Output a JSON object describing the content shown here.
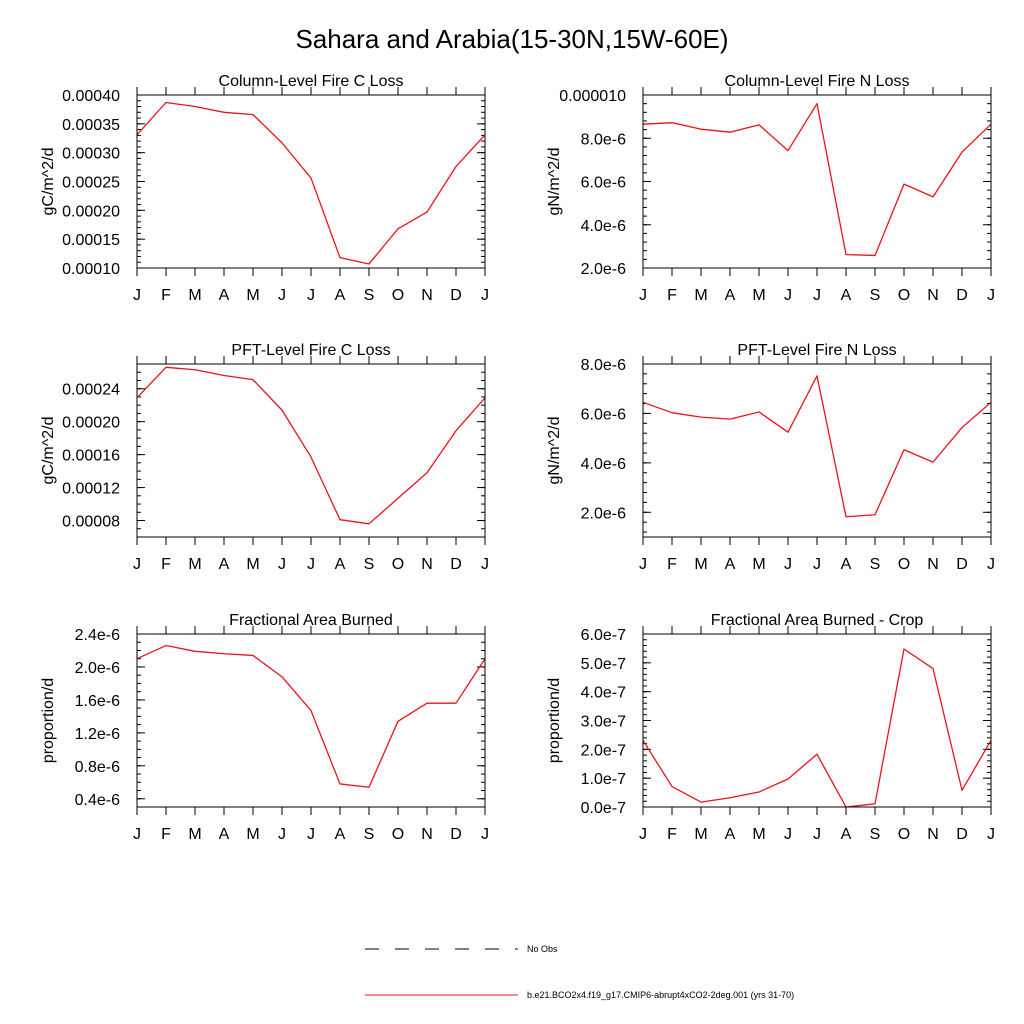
{
  "figure": {
    "title": "Sahara and Arabia(15-30N,15W-60E)"
  },
  "legend": {
    "placement": "bottom-center",
    "entries": [
      {
        "label": "No Obs",
        "color": "#000000",
        "style": "dashed"
      },
      {
        "label": "b.e21.BCO2x4.f19_g17.CMIP6-abrupt4xCO2-2deg.001 (yrs 31-70)",
        "color": "#e8141c",
        "style": "solid"
      }
    ]
  },
  "chart_data": [
    {
      "type": "line",
      "title": "Column-Level Fire C Loss",
      "xlabel": "",
      "ylabel": "gC/m^2/d",
      "x": [
        "J",
        "F",
        "M",
        "A",
        "M",
        "J",
        "J",
        "A",
        "S",
        "O",
        "N",
        "D",
        "J"
      ],
      "ylim": [
        0.0001,
        0.0004
      ],
      "yticks": [
        0.0001,
        0.00015,
        0.0002,
        0.00025,
        0.0003,
        0.00035,
        0.0004
      ],
      "yticklabels": [
        "0.00010",
        "0.00015",
        "0.00020",
        "0.00025",
        "0.00030",
        "0.00035",
        "0.00040"
      ],
      "yminor": 1e-05,
      "series": [
        {
          "name": "b.e21.BCO2x4.f19_g17.CMIP6-abrupt4xCO2-2deg.001 (yrs 31-70)",
          "color": "#e8141c",
          "values": [
            0.000331,
            0.000387,
            0.00038,
            0.00037,
            0.000366,
            0.000317,
            0.000256,
            0.000118,
            0.000107,
            0.000168,
            0.000197,
            0.000276,
            0.000331
          ]
        }
      ]
    },
    {
      "type": "line",
      "title": "Column-Level Fire N Loss",
      "xlabel": "",
      "ylabel": "gN/m^2/d",
      "x": [
        "J",
        "F",
        "M",
        "A",
        "M",
        "J",
        "J",
        "A",
        "S",
        "O",
        "N",
        "D",
        "J"
      ],
      "ylim": [
        2e-06,
        1e-05
      ],
      "yticks": [
        2e-06,
        4e-06,
        6e-06,
        8e-06,
        1e-05
      ],
      "yticklabels": [
        "2.0e-6",
        "4.0e-6",
        "6.0e-6",
        "8.0e-6",
        "0.000010"
      ],
      "yminor": 4e-07,
      "series": [
        {
          "name": "b.e21.BCO2x4.f19_g17.CMIP6-abrupt4xCO2-2deg.001 (yrs 31-70)",
          "color": "#e8141c",
          "values": [
            8.65e-06,
            8.72e-06,
            8.42e-06,
            8.28e-06,
            8.62e-06,
            7.43e-06,
            9.6e-06,
            2.62e-06,
            2.58e-06,
            5.88e-06,
            5.29e-06,
            7.36e-06,
            8.65e-06
          ]
        }
      ]
    },
    {
      "type": "line",
      "title": "PFT-Level Fire C Loss",
      "xlabel": "",
      "ylabel": "gC/m^2/d",
      "x": [
        "J",
        "F",
        "M",
        "A",
        "M",
        "J",
        "J",
        "A",
        "S",
        "O",
        "N",
        "D",
        "J"
      ],
      "ylim": [
        6e-05,
        0.00027
      ],
      "yticks": [
        8e-05,
        0.00012,
        0.00016,
        0.0002,
        0.00024
      ],
      "yticklabels": [
        "0.00008",
        "0.00012",
        "0.00016",
        "0.00020",
        "0.00024"
      ],
      "yminor": 1e-05,
      "series": [
        {
          "name": "b.e21.BCO2x4.f19_g17.CMIP6-abrupt4xCO2-2deg.001 (yrs 31-70)",
          "color": "#e8141c",
          "values": [
            0.000229,
            0.000266,
            0.000263,
            0.000256,
            0.000251,
            0.000214,
            0.000157,
            8.1e-05,
            7.6e-05,
            0.000107,
            0.000138,
            0.000189,
            0.000229
          ]
        }
      ]
    },
    {
      "type": "line",
      "title": "PFT-Level Fire N Loss",
      "xlabel": "",
      "ylabel": "gN/m^2/d",
      "x": [
        "J",
        "F",
        "M",
        "A",
        "M",
        "J",
        "J",
        "A",
        "S",
        "O",
        "N",
        "D",
        "J"
      ],
      "ylim": [
        1e-06,
        8e-06
      ],
      "yticks": [
        2e-06,
        4e-06,
        6e-06,
        8e-06
      ],
      "yticklabels": [
        "2.0e-6",
        "4.0e-6",
        "6.0e-6",
        "8.0e-6"
      ],
      "yminor": 4e-07,
      "series": [
        {
          "name": "b.e21.BCO2x4.f19_g17.CMIP6-abrupt4xCO2-2deg.001 (yrs 31-70)",
          "color": "#e8141c",
          "values": [
            6.45e-06,
            6.03e-06,
            5.85e-06,
            5.77e-06,
            6.06e-06,
            5.24e-06,
            7.52e-06,
            1.82e-06,
            1.9e-06,
            4.53e-06,
            4.03e-06,
            5.43e-06,
            6.45e-06
          ]
        }
      ]
    },
    {
      "type": "line",
      "title": "Fractional Area Burned",
      "xlabel": "",
      "ylabel": "proportion/d",
      "x": [
        "J",
        "F",
        "M",
        "A",
        "M",
        "J",
        "J",
        "A",
        "S",
        "O",
        "N",
        "D",
        "J"
      ],
      "ylim": [
        3e-07,
        2.4e-06
      ],
      "yticks": [
        4e-07,
        8e-07,
        1.2e-06,
        1.6e-06,
        2e-06,
        2.4e-06
      ],
      "yticklabels": [
        "0.4e-6",
        "0.8e-6",
        "1.2e-6",
        "1.6e-6",
        "2.0e-6",
        "2.4e-6"
      ],
      "yminor": 1e-07,
      "series": [
        {
          "name": "b.e21.BCO2x4.f19_g17.CMIP6-abrupt4xCO2-2deg.001 (yrs 31-70)",
          "color": "#e8141c",
          "values": [
            2.1e-06,
            2.26e-06,
            2.19e-06,
            2.16e-06,
            2.14e-06,
            1.88e-06,
            1.47e-06,
            5.8e-07,
            5.4e-07,
            1.34e-06,
            1.56e-06,
            1.56e-06,
            2.1e-06
          ]
        }
      ]
    },
    {
      "type": "line",
      "title": "Fractional Area Burned - Crop",
      "xlabel": "",
      "ylabel": "proportion/d",
      "x": [
        "J",
        "F",
        "M",
        "A",
        "M",
        "J",
        "J",
        "A",
        "S",
        "O",
        "N",
        "D",
        "J"
      ],
      "ylim": [
        0.0,
        6e-07
      ],
      "yticks": [
        0.0,
        1e-07,
        2e-07,
        3e-07,
        4e-07,
        5e-07,
        6e-07
      ],
      "yticklabels": [
        "0.0e-7",
        "1.0e-7",
        "2.0e-7",
        "3.0e-7",
        "4.0e-7",
        "5.0e-7",
        "6.0e-7"
      ],
      "yminor": 2e-08,
      "series": [
        {
          "name": "b.e21.BCO2x4.f19_g17.CMIP6-abrupt4xCO2-2deg.001 (yrs 31-70)",
          "color": "#e8141c",
          "values": [
            2.31e-07,
            7.1e-08,
            1.7e-08,
            3.2e-08,
            5.2e-08,
            9.7e-08,
            1.83e-07,
            0.0,
            1.1e-08,
            5.48e-07,
            4.8e-07,
            5.8e-08,
            2.31e-07
          ]
        }
      ]
    }
  ]
}
